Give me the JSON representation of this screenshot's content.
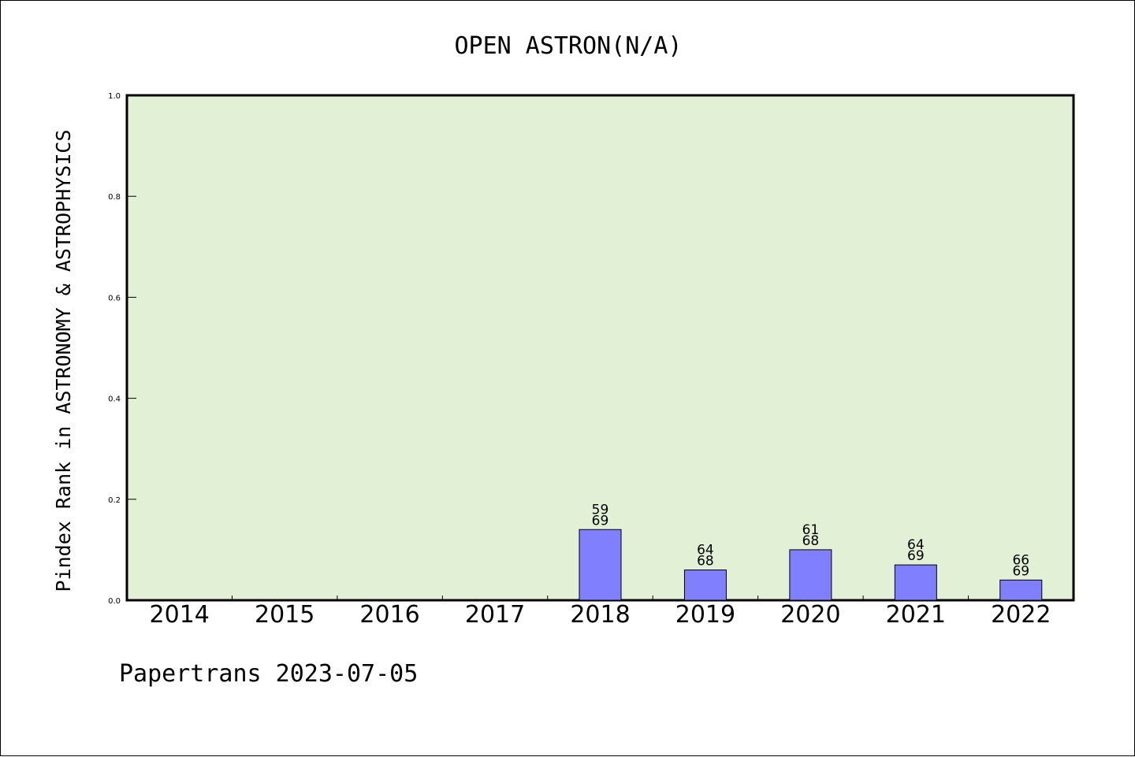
{
  "chart_data": {
    "type": "bar",
    "title": "OPEN ASTRON(N/A)",
    "ylabel": "Pindex Rank in ASTRONOMY & ASTROPHYSICS",
    "xlabel": "",
    "footer": "Papertrans 2023-07-05",
    "categories": [
      "2014",
      "2015",
      "2016",
      "2017",
      "2018",
      "2019",
      "2020",
      "2021",
      "2022"
    ],
    "values": [
      null,
      null,
      null,
      null,
      0.14,
      0.06,
      0.1,
      0.07,
      0.04
    ],
    "rank_labels": [
      null,
      null,
      null,
      null,
      "59",
      "64",
      "61",
      "64",
      "66"
    ],
    "total_labels": [
      null,
      null,
      null,
      null,
      "69",
      "68",
      "68",
      "69",
      "69"
    ],
    "ylim": [
      0,
      1.0
    ],
    "yticks": [
      "0.0",
      "0.2",
      "0.4",
      "0.6",
      "0.8",
      "1.0"
    ],
    "ytick_values": [
      0,
      0.2,
      0.4,
      0.6,
      0.8,
      1.0
    ],
    "grid": false,
    "colors": {
      "plot_background": "#e2f0d6",
      "bar": "#8080ff",
      "axis": "#000000"
    }
  }
}
